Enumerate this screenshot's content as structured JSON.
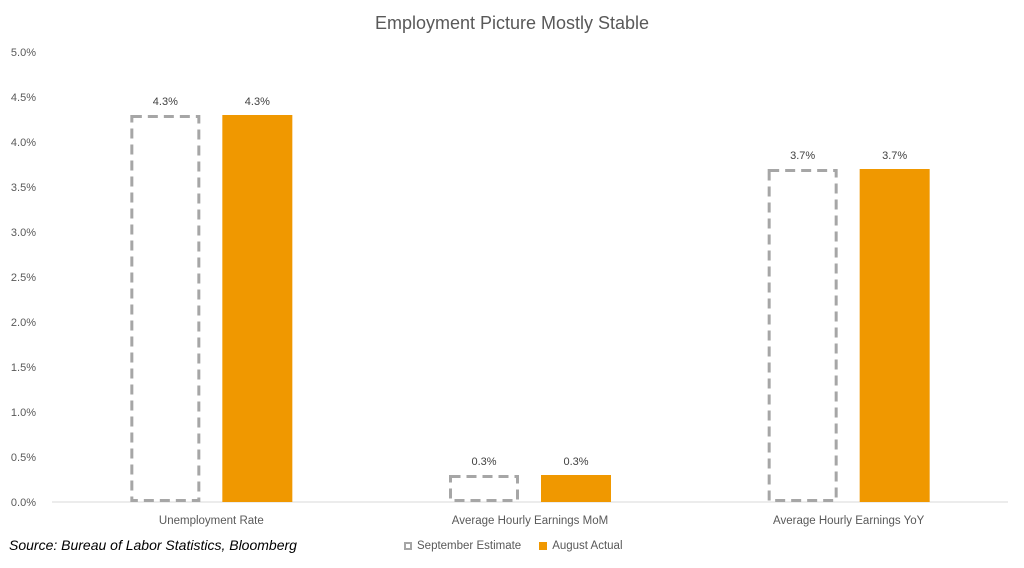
{
  "chart_data": {
    "type": "bar",
    "title": "Employment Picture Mostly Stable",
    "categories": [
      "Unemployment Rate",
      "Average Hourly Earnings MoM",
      "Average Hourly Earnings YoY"
    ],
    "series": [
      {
        "name": "September Estimate",
        "values": [
          4.3,
          0.3,
          3.7
        ],
        "labels": [
          "4.3%",
          "0.3%",
          "3.7%"
        ],
        "style": "dashed-outline",
        "color": "#A6A6A6"
      },
      {
        "name": "August Actual",
        "values": [
          4.3,
          0.3,
          3.7
        ],
        "labels": [
          "4.3%",
          "0.3%",
          "3.7%"
        ],
        "style": "filled",
        "color": "#F09800"
      }
    ],
    "ylim": [
      0,
      5
    ],
    "yticks": [
      0,
      0.5,
      1,
      1.5,
      2,
      2.5,
      3,
      3.5,
      4,
      4.5,
      5
    ],
    "ytick_labels": [
      "0.0%",
      "0.5%",
      "1.0%",
      "1.5%",
      "2.0%",
      "2.5%",
      "3.0%",
      "3.5%",
      "4.0%",
      "4.5%",
      "5.0%"
    ],
    "grid": false,
    "legend_position": "bottom"
  },
  "source": "Source: Bureau of Labor Statistics, Bloomberg"
}
